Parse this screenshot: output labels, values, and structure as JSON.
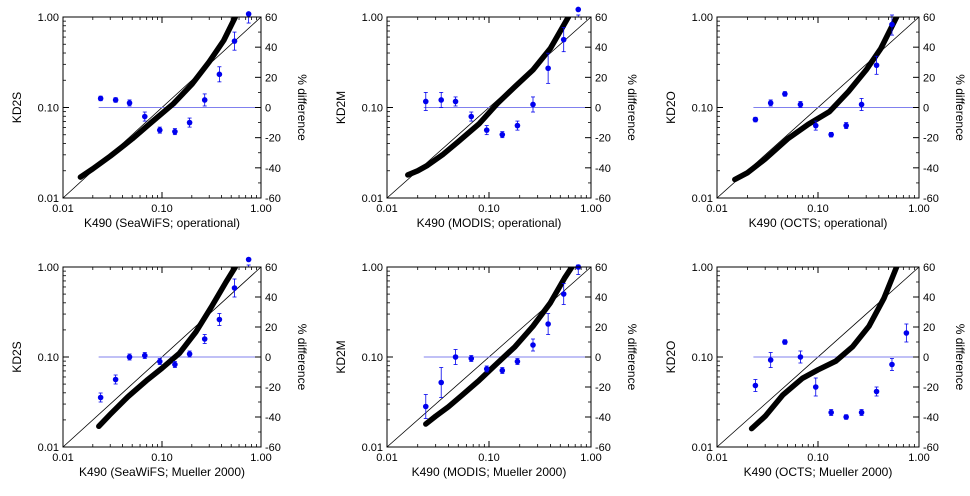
{
  "colors": {
    "model": "#000000",
    "diff": "#0000ee",
    "zero_line": "#8080ee",
    "one_to_one": "#000000"
  },
  "chart_data": [
    {
      "type": "scatter",
      "xlabel": "K490 (SeaWiFS; operational)",
      "ylabel": "KD2S",
      "y2label": "% difference",
      "xscale": "log",
      "yscale": "log",
      "xlim": [
        0.01,
        1.0
      ],
      "ylim": [
        0.01,
        1.0
      ],
      "y2lim": [
        -60,
        60
      ],
      "xticklabels": [
        "0.01",
        "0.10",
        "1.00"
      ],
      "yticklabels": [
        "0.01",
        "0.10",
        "1.00"
      ],
      "y2ticklabels": [
        "-60",
        "-40",
        "-20",
        "0",
        "20",
        "40",
        "60"
      ],
      "curve": {
        "x_range": [
          0.015,
          0.55
        ],
        "x": [
          0.015,
          0.02,
          0.03,
          0.05,
          0.08,
          0.13,
          0.2,
          0.3,
          0.42,
          0.55
        ],
        "y": [
          0.017,
          0.021,
          0.029,
          0.045,
          0.07,
          0.11,
          0.18,
          0.32,
          0.55,
          1.0
        ]
      },
      "diff": {
        "x": [
          0.024,
          0.034,
          0.047,
          0.067,
          0.095,
          0.135,
          0.19,
          0.27,
          0.38,
          0.54,
          0.75
        ],
        "y": [
          6,
          5,
          3,
          -6,
          -15,
          -16,
          -10,
          5,
          22,
          44,
          62
        ],
        "err": [
          1.5,
          1.5,
          2,
          3,
          2,
          2,
          3,
          4,
          5,
          6,
          6
        ]
      }
    },
    {
      "type": "scatter",
      "xlabel": "K490 (MODIS; operational)",
      "ylabel": "KD2M",
      "y2label": "% difference",
      "xscale": "log",
      "yscale": "log",
      "xlim": [
        0.01,
        1.0
      ],
      "ylim": [
        0.01,
        1.0
      ],
      "y2lim": [
        -60,
        60
      ],
      "xticklabels": [
        "0.01",
        "0.10",
        "1.00"
      ],
      "yticklabels": [
        "0.01",
        "0.10",
        "1.00"
      ],
      "y2ticklabels": [
        "-60",
        "-40",
        "-20",
        "0",
        "20",
        "40",
        "60"
      ],
      "curve": {
        "x_range": [
          0.016,
          0.6
        ],
        "x": [
          0.016,
          0.02,
          0.025,
          0.035,
          0.05,
          0.08,
          0.12,
          0.18,
          0.27,
          0.4,
          0.6
        ],
        "y": [
          0.018,
          0.02,
          0.023,
          0.03,
          0.042,
          0.066,
          0.11,
          0.17,
          0.26,
          0.45,
          1.0
        ]
      },
      "diff": {
        "x": [
          0.024,
          0.034,
          0.047,
          0.067,
          0.095,
          0.135,
          0.19,
          0.27,
          0.38,
          0.54,
          0.75
        ],
        "y": [
          4,
          5,
          4,
          -6,
          -15,
          -18,
          -12,
          2,
          26,
          45,
          65
        ],
        "err": [
          6,
          5,
          3,
          3,
          3,
          2,
          3,
          5,
          10,
          8,
          5
        ]
      }
    },
    {
      "type": "scatter",
      "xlabel": "K490 (OCTS; operational)",
      "ylabel": "KD2O",
      "y2label": "% difference",
      "xscale": "log",
      "yscale": "log",
      "xlim": [
        0.01,
        1.0
      ],
      "ylim": [
        0.01,
        1.0
      ],
      "y2lim": [
        -60,
        60
      ],
      "xticklabels": [
        "0.01",
        "0.10",
        "1.00"
      ],
      "yticklabels": [
        "0.01",
        "0.10",
        "1.00"
      ],
      "y2ticklabels": [
        "-60",
        "-40",
        "-20",
        "0",
        "20",
        "40",
        "60"
      ],
      "curve": {
        "x_range": [
          0.015,
          0.6
        ],
        "x": [
          0.015,
          0.02,
          0.03,
          0.05,
          0.08,
          0.13,
          0.2,
          0.3,
          0.42,
          0.6
        ],
        "y": [
          0.016,
          0.019,
          0.027,
          0.045,
          0.065,
          0.09,
          0.15,
          0.26,
          0.45,
          1.0
        ]
      },
      "diff": {
        "x": [
          0.024,
          0.034,
          0.047,
          0.067,
          0.095,
          0.135,
          0.19,
          0.27,
          0.38,
          0.54
        ],
        "y": [
          -8,
          3,
          9,
          2,
          -12,
          -18,
          -12,
          2,
          28,
          55
        ],
        "err": [
          1.5,
          2,
          1.5,
          2,
          3,
          1.5,
          2,
          4,
          6,
          7
        ]
      }
    },
    {
      "type": "scatter",
      "xlabel": "K490 (SeaWiFS; Mueller 2000)",
      "ylabel": "KD2S",
      "y2label": "% difference",
      "xscale": "log",
      "yscale": "log",
      "xlim": [
        0.01,
        1.0
      ],
      "ylim": [
        0.01,
        1.0
      ],
      "y2lim": [
        -60,
        60
      ],
      "xticklabels": [
        "0.01",
        "0.10",
        "1.00"
      ],
      "yticklabels": [
        "0.01",
        "0.10",
        "1.00"
      ],
      "y2ticklabels": [
        "-60",
        "-40",
        "-20",
        "0",
        "20",
        "40",
        "60"
      ],
      "curve": {
        "x_range": [
          0.023,
          0.55
        ],
        "x": [
          0.023,
          0.03,
          0.045,
          0.07,
          0.1,
          0.15,
          0.22,
          0.32,
          0.45,
          0.55
        ],
        "y": [
          0.017,
          0.023,
          0.036,
          0.055,
          0.075,
          0.11,
          0.19,
          0.37,
          0.7,
          1.0
        ]
      },
      "diff": {
        "x": [
          0.024,
          0.034,
          0.047,
          0.067,
          0.095,
          0.135,
          0.19,
          0.27,
          0.38,
          0.54,
          0.75
        ],
        "y": [
          -27,
          -15,
          0,
          1,
          -3,
          -5,
          2,
          12,
          25,
          46,
          65
        ],
        "err": [
          3,
          3,
          2,
          2,
          2,
          2,
          2,
          3,
          4,
          6,
          5
        ]
      }
    },
    {
      "type": "scatter",
      "xlabel": "K490 (MODIS; Mueller 2000)",
      "ylabel": "KD2M",
      "y2label": "% difference",
      "xscale": "log",
      "yscale": "log",
      "xlim": [
        0.01,
        1.0
      ],
      "ylim": [
        0.01,
        1.0
      ],
      "y2lim": [
        -60,
        60
      ],
      "xticklabels": [
        "0.01",
        "0.10",
        "1.00"
      ],
      "yticklabels": [
        "0.01",
        "0.10",
        "1.00"
      ],
      "y2ticklabels": [
        "-60",
        "-40",
        "-20",
        "0",
        "20",
        "40",
        "60"
      ],
      "curve": {
        "x_range": [
          0.024,
          0.65
        ],
        "x": [
          0.024,
          0.03,
          0.04,
          0.055,
          0.08,
          0.12,
          0.18,
          0.27,
          0.4,
          0.55,
          0.65
        ],
        "y": [
          0.018,
          0.022,
          0.028,
          0.038,
          0.055,
          0.085,
          0.13,
          0.22,
          0.4,
          0.75,
          1.0
        ]
      },
      "diff": {
        "x": [
          0.024,
          0.034,
          0.047,
          0.067,
          0.095,
          0.135,
          0.19,
          0.27,
          0.38,
          0.54,
          0.75
        ],
        "y": [
          -33,
          -17,
          0,
          -1,
          -8,
          -9,
          -3,
          8,
          22,
          42,
          60
        ],
        "err": [
          8,
          10,
          5,
          2,
          2,
          2,
          2,
          4,
          7,
          7,
          5
        ]
      }
    },
    {
      "type": "scatter",
      "xlabel": "K490 (OCTS; Mueller 2000)",
      "ylabel": "KD2O",
      "y2label": "% difference",
      "xscale": "log",
      "yscale": "log",
      "xlim": [
        0.01,
        1.0
      ],
      "ylim": [
        0.01,
        1.0
      ],
      "y2lim": [
        -60,
        60
      ],
      "xticklabels": [
        "0.01",
        "0.10",
        "1.00"
      ],
      "yticklabels": [
        "0.01",
        "0.10",
        "1.00"
      ],
      "y2ticklabels": [
        "-60",
        "-40",
        "-20",
        "0",
        "20",
        "40",
        "60"
      ],
      "curve": {
        "x_range": [
          0.022,
          0.6
        ],
        "x": [
          0.022,
          0.03,
          0.045,
          0.07,
          0.1,
          0.15,
          0.22,
          0.32,
          0.45,
          0.6
        ],
        "y": [
          0.016,
          0.022,
          0.038,
          0.058,
          0.072,
          0.09,
          0.13,
          0.22,
          0.45,
          1.0
        ]
      },
      "diff": {
        "x": [
          0.024,
          0.034,
          0.047,
          0.067,
          0.095,
          0.135,
          0.19,
          0.27,
          0.38,
          0.54,
          0.75
        ],
        "y": [
          -19,
          -2,
          10,
          0,
          -20,
          -37,
          -40,
          -37,
          -23,
          -5,
          16
        ],
        "err": [
          4,
          5,
          1.5,
          4,
          6,
          2,
          1.5,
          2,
          3,
          4,
          6
        ]
      }
    }
  ]
}
